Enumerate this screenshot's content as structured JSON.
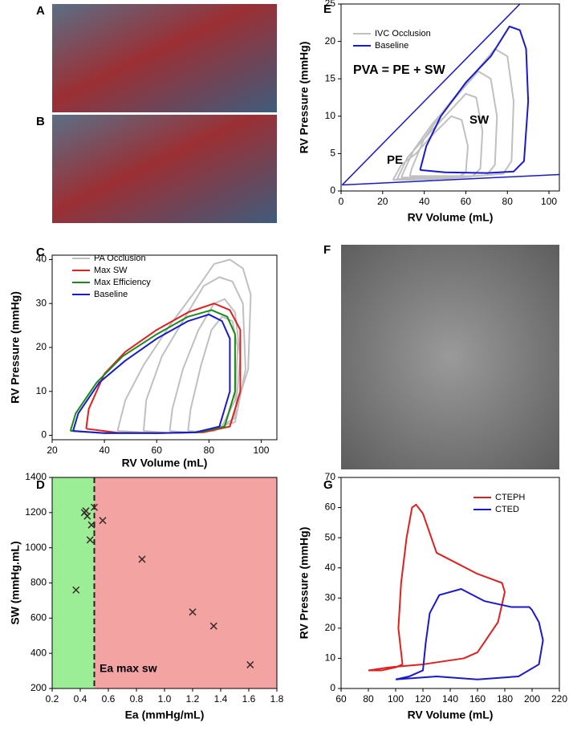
{
  "panel_labels": [
    "A",
    "B",
    "C",
    "D",
    "E",
    "F",
    "G"
  ],
  "chart_data": [
    {
      "type": "line",
      "xlabel": "RV Volume (mL)",
      "ylabel": "RV Pressure (mmHg)",
      "xlim": [
        0,
        105
      ],
      "ylim": [
        0,
        25
      ],
      "xticks": [
        0,
        20,
        40,
        60,
        80,
        100
      ],
      "yticks": [
        0,
        5,
        10,
        15,
        20,
        25
      ],
      "legend": "upper left",
      "annotations": [
        "PVA = PE + SW",
        "SW",
        "PE"
      ],
      "lines": [
        {
          "color": "#1a1acc",
          "x": [
            0.5,
            86
          ],
          "y": [
            0.8,
            25
          ]
        },
        {
          "color": "#1a1acc",
          "x": [
            0.5,
            105
          ],
          "y": [
            0.8,
            2.2
          ]
        }
      ],
      "series": [
        {
          "name": "IVC Occlusion",
          "color": "#c0c0c0",
          "x": [
            33,
            45,
            65,
            78,
            82,
            83,
            80,
            74,
            62,
            50,
            40,
            34,
            33,
            null,
            29,
            40,
            58,
            70,
            74,
            75,
            72,
            66,
            55,
            44,
            35,
            30,
            29,
            null,
            27,
            36,
            52,
            63,
            67,
            68,
            65,
            60,
            50,
            40,
            32,
            28,
            27,
            null,
            25,
            33,
            46,
            56,
            60,
            61,
            58,
            53,
            44,
            36,
            29,
            26,
            25
          ],
          "values": [
            2,
            2,
            2,
            2.3,
            4,
            12,
            18,
            19,
            15,
            11,
            7,
            3,
            2,
            null,
            1.8,
            1.8,
            1.9,
            2.1,
            3.5,
            10,
            15,
            16,
            12.5,
            9,
            5.5,
            2.5,
            1.8,
            null,
            1.6,
            1.6,
            1.7,
            1.9,
            3,
            8,
            12.5,
            13,
            10,
            7,
            4.5,
            2.2,
            1.6,
            null,
            1.5,
            1.5,
            1.6,
            1.8,
            2.5,
            6,
            9.5,
            10,
            7.5,
            5,
            3.5,
            2,
            1.5
          ]
        },
        {
          "name": "Baseline",
          "color": "#1a1acc",
          "x": [
            38,
            50,
            70,
            83,
            88,
            90,
            89,
            86,
            81,
            72,
            60,
            48,
            41,
            38
          ],
          "values": [
            2.8,
            2.5,
            2.4,
            2.6,
            4,
            12,
            19,
            21.5,
            22,
            18,
            14.5,
            10,
            6,
            2.8
          ]
        }
      ]
    },
    {
      "type": "line",
      "xlabel": "RV Volume (mL)",
      "ylabel": "RV Pressure (mmHg)",
      "xlim": [
        20,
        106
      ],
      "ylim": [
        -1,
        41
      ],
      "xticks": [
        20,
        40,
        60,
        80,
        100
      ],
      "yticks": [
        0,
        10,
        20,
        30,
        40
      ],
      "legend": "upper left",
      "series": [
        {
          "name": "PA Occlusion",
          "color": "#c0c0c0",
          "x": [
            45,
            60,
            75,
            88,
            95,
            96,
            93,
            88,
            82,
            75,
            65,
            55,
            48,
            45,
            null,
            55,
            65,
            78,
            90,
            94,
            93,
            89,
            84,
            78,
            70,
            62,
            56,
            55,
            null,
            65,
            72,
            82,
            90,
            92,
            90,
            86,
            82,
            76,
            70,
            66,
            65,
            null,
            72,
            78,
            85,
            90,
            91,
            89,
            85,
            81,
            77,
            73,
            72
          ],
          "values": [
            1,
            0.5,
            0.7,
            2,
            15,
            32,
            38,
            40,
            39,
            33,
            25,
            16,
            8,
            1,
            null,
            1,
            0.5,
            1,
            3,
            15,
            30,
            35,
            36,
            34,
            26,
            18,
            8,
            1,
            null,
            1,
            0.6,
            1,
            4,
            18,
            28,
            31,
            30,
            24,
            15,
            6,
            1,
            null,
            1,
            0.7,
            2,
            8,
            20,
            26,
            27,
            24,
            16,
            6,
            1
          ]
        },
        {
          "name": "Max SW",
          "color": "#e02020",
          "x": [
            33,
            45,
            62,
            78,
            88,
            92,
            92,
            88,
            82,
            72,
            60,
            48,
            40,
            34,
            33
          ],
          "values": [
            1.5,
            0.6,
            0.5,
            0.7,
            2,
            10,
            24,
            28.5,
            30,
            28,
            24,
            19,
            14,
            6,
            1.5
          ]
        },
        {
          "name": "Max Efficiency",
          "color": "#1a8a1a",
          "x": [
            27,
            40,
            60,
            76,
            86,
            90,
            90,
            87,
            81,
            72,
            60,
            47,
            37,
            29,
            27
          ],
          "values": [
            1,
            0.5,
            0.5,
            0.7,
            2,
            10,
            23,
            27,
            28.5,
            27,
            23,
            18,
            12,
            5,
            1
          ]
        },
        {
          "name": "Baseline",
          "color": "#1a1acc",
          "x": [
            28,
            40,
            60,
            75,
            84,
            88,
            88,
            85,
            80,
            72,
            60,
            48,
            38,
            30,
            28
          ],
          "values": [
            1,
            0.5,
            0.5,
            0.7,
            2,
            10,
            22,
            26,
            27.5,
            26,
            22,
            17,
            12,
            5,
            1
          ]
        }
      ]
    },
    {
      "type": "scatter",
      "xlabel": "Ea (mmHg/mL)",
      "ylabel": "SW (mmHg.mL)",
      "xlim": [
        0.2,
        1.8
      ],
      "ylim": [
        200,
        1400
      ],
      "xticks": [
        0.2,
        0.4,
        0.6,
        0.8,
        {
          "value": 1,
          "label": "1.0"
        },
        1.2,
        1.4,
        1.6,
        1.8
      ],
      "yticks": [
        200,
        400,
        600,
        800,
        1000,
        1200,
        1400
      ],
      "regions": [
        {
          "xlim": [
            0.2,
            0.5
          ],
          "color": "#9cee96"
        },
        {
          "xlim": [
            0.5,
            1.8
          ],
          "color": "#f4a3a3"
        }
      ],
      "vline": 0.5,
      "marker_color": "#3a2a2a",
      "annotations": [
        "Ea max sw"
      ],
      "x": [
        0.37,
        0.43,
        0.44,
        0.45,
        0.47,
        0.48,
        0.5,
        0.56,
        0.84,
        1.2,
        1.35,
        1.61
      ],
      "values": [
        760,
        1200,
        1210,
        1180,
        1045,
        1130,
        1230,
        1155,
        935,
        635,
        555,
        335
      ]
    },
    {
      "type": "line",
      "xlabel": "RV Volume (mL)",
      "ylabel": "RV Pressure (mmHg)",
      "xlim": [
        60,
        220
      ],
      "ylim": [
        0,
        70
      ],
      "xticks": [
        60,
        80,
        100,
        120,
        140,
        160,
        180,
        200,
        220
      ],
      "yticks": [
        0,
        10,
        20,
        30,
        40,
        50,
        60,
        70
      ],
      "legend": "upper right",
      "series": [
        {
          "name": "CTEPH",
          "color": "#e02020",
          "x": [
            80,
            95,
            120,
            150,
            160,
            175,
            180,
            178,
            172,
            160,
            130,
            120,
            115,
            112,
            108,
            104,
            102,
            105,
            100,
            90,
            80
          ],
          "values": [
            6,
            7,
            8,
            10,
            12,
            22,
            32,
            35,
            36,
            38,
            45,
            58,
            61,
            60,
            50,
            35,
            20,
            8,
            7,
            6,
            6
          ]
        },
        {
          "name": "CTED",
          "color": "#1a1acc",
          "x": [
            100,
            130,
            160,
            190,
            205,
            208,
            205,
            200,
            198,
            185,
            165,
            148,
            132,
            125,
            122,
            120,
            110,
            100
          ],
          "values": [
            3,
            4,
            3,
            4,
            8,
            16,
            22,
            26,
            27,
            27,
            29,
            33,
            31,
            25,
            15,
            6,
            4,
            3
          ]
        }
      ]
    }
  ]
}
